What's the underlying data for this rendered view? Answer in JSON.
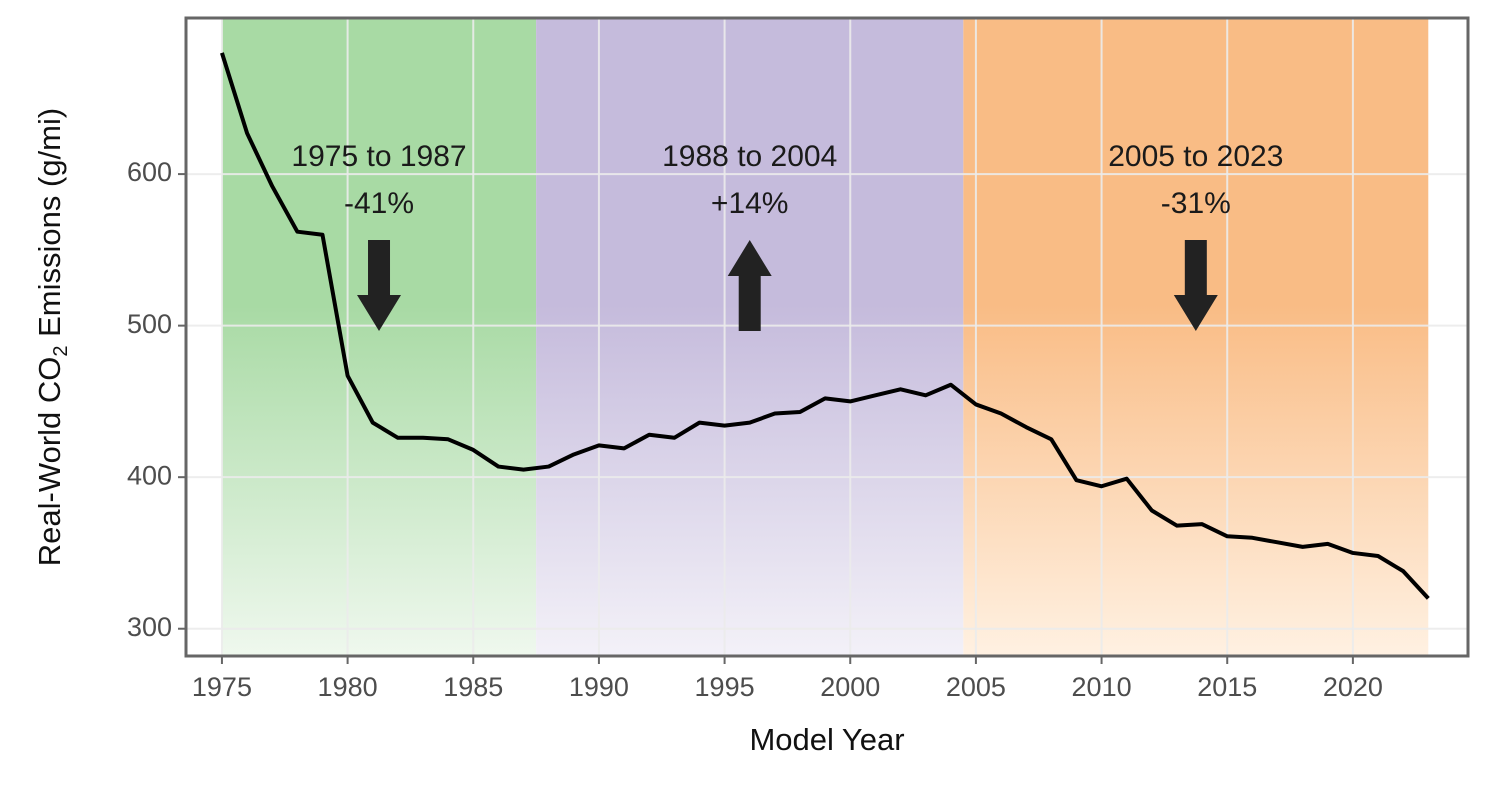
{
  "chart_data": {
    "type": "line",
    "x_label": "Model Year",
    "y_label": {
      "before": "Real-World CO",
      "sub": "2",
      "after": " Emissions (g/mi)"
    },
    "x": [
      1975,
      1976,
      1977,
      1978,
      1979,
      1980,
      1981,
      1982,
      1983,
      1984,
      1985,
      1986,
      1987,
      1988,
      1989,
      1990,
      1991,
      1992,
      1993,
      1994,
      1995,
      1996,
      1997,
      1998,
      1999,
      2000,
      2001,
      2002,
      2003,
      2004,
      2005,
      2006,
      2007,
      2008,
      2009,
      2010,
      2011,
      2012,
      2013,
      2014,
      2015,
      2016,
      2017,
      2018,
      2019,
      2020,
      2021,
      2022,
      2023
    ],
    "values": [
      680,
      627,
      592,
      562,
      560,
      467,
      436,
      426,
      426,
      425,
      418,
      407,
      405,
      407,
      415,
      421,
      419,
      428,
      426,
      436,
      434,
      436,
      442,
      443,
      452,
      450,
      454,
      458,
      454,
      461,
      448,
      442,
      433,
      425,
      398,
      394,
      399,
      378,
      368,
      369,
      361,
      360,
      357,
      354,
      356,
      350,
      348,
      338,
      320
    ],
    "color": "#000000",
    "xlim": [
      1973.57,
      2024.58
    ],
    "ylim": [
      282,
      703
    ],
    "xticks": [
      1975,
      1980,
      1985,
      1990,
      1995,
      2000,
      2005,
      2010,
      2015,
      2020
    ],
    "yticks": [
      300,
      400,
      500,
      600
    ],
    "grid": true,
    "regions": [
      {
        "label": "1975 to 1987",
        "change": "-41%",
        "direction": "down",
        "color_top": "#a8daa4",
        "color_bottom": "#eff8ee"
      },
      {
        "label": "1988 to 2004",
        "change": "+14%",
        "direction": "up",
        "color_top": "#c5bbdc",
        "color_bottom": "#f3f1f8"
      },
      {
        "label": "2005 to 2023",
        "change": "-31%",
        "direction": "down",
        "color_top": "#f9bc85",
        "color_bottom": "#fff1e2"
      }
    ]
  }
}
